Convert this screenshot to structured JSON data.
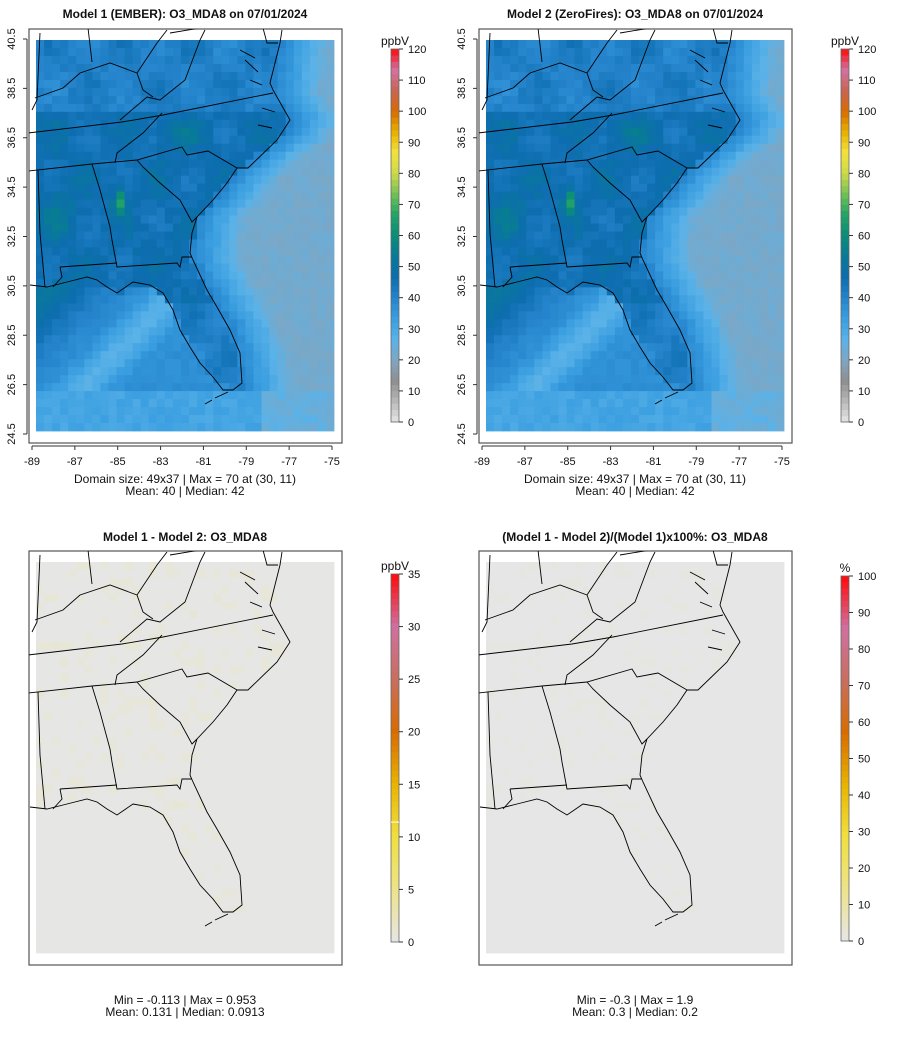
{
  "panels": [
    {
      "title": "Model 1 (EMBER): O3_MDA8 on 07/01/2024",
      "unit": "ppbV",
      "colorbar_ticks": [
        "0",
        "10",
        "20",
        "30",
        "40",
        "50",
        "60",
        "70",
        "80",
        "90",
        "100",
        "110",
        "120"
      ],
      "stats_line1": "Domain size: 49x37 | Max = 70 at (30, 11)",
      "stats_line2": "Mean: 40 |  Median: 42"
    },
    {
      "title": "Model 2 (ZeroFires): O3_MDA8 on 07/01/2024",
      "unit": "ppbV",
      "colorbar_ticks": [
        "0",
        "10",
        "20",
        "30",
        "40",
        "50",
        "60",
        "70",
        "80",
        "90",
        "100",
        "110",
        "120"
      ],
      "stats_line1": "Domain size: 49x37 | Max = 70 at (30, 11)",
      "stats_line2": "Mean: 40 |  Median: 42"
    },
    {
      "title": "Model 1 - Model 2: O3_MDA8",
      "unit": "ppbV",
      "colorbar_ticks": [
        "0",
        "5",
        "10",
        "15",
        "20",
        "25",
        "30",
        "35"
      ],
      "stats_line1": "Min = -0.113 | Max = 0.953",
      "stats_line2": "Mean: 0.131 |  Median: 0.0913"
    },
    {
      "title": "(Model 1 - Model 2)/(Model 1)x100%: O3_MDA8",
      "unit": "%",
      "colorbar_ticks": [
        "0",
        "10",
        "20",
        "30",
        "40",
        "50",
        "60",
        "70",
        "80",
        "90",
        "100"
      ],
      "stats_line1": "Min = -0.3 | Max = 1.9",
      "stats_line2": "Mean: 0.3 |  Median: 0.2"
    }
  ],
  "axes": {
    "lat_ticks": [
      "40.5",
      "38.5",
      "36.5",
      "34.5",
      "32.5",
      "30.5",
      "28.5",
      "26.5",
      "24.5"
    ],
    "lon_ticks": [
      "-89",
      "-87",
      "-85",
      "-83",
      "-81",
      "-79",
      "-77",
      "-75"
    ]
  },
  "colors": {
    "o3_scale": [
      "#e6e6e6",
      "#b8b8b8",
      "#8e8e8e",
      "#7fa6c2",
      "#5ab2e8",
      "#3a9ee0",
      "#2584cc",
      "#0d6daf",
      "#087a98",
      "#0a8c78",
      "#22a266",
      "#72c055",
      "#cdd94a",
      "#f1e23c",
      "#e8b000",
      "#d86c00",
      "#c86452",
      "#d072a2",
      "#ff0a0a"
    ],
    "diff_scale": [
      "#e6e6e6",
      "#ede38a",
      "#f0e040",
      "#e9b400",
      "#d86c00",
      "#c86e5e",
      "#d070a0",
      "#ff0a0a"
    ],
    "box": "#555555"
  },
  "chart_data": {
    "type": "heatmap",
    "grid": "49x37",
    "variable": "O3_MDA8",
    "date": "07/01/2024",
    "lat_range": [
      24.5,
      40.5
    ],
    "lon_range": [
      -89,
      -75
    ],
    "model1": {
      "max": 70,
      "max_at": [
        30,
        11
      ],
      "mean": 40,
      "median": 42,
      "clim": [
        0,
        120
      ]
    },
    "model2": {
      "max": 70,
      "max_at": [
        30,
        11
      ],
      "mean": 40,
      "median": 42,
      "clim": [
        0,
        120
      ]
    },
    "difference": {
      "min": -0.113,
      "max": 0.953,
      "mean": 0.131,
      "median": 0.0913,
      "clim": [
        0,
        35
      ]
    },
    "percent_difference": {
      "min": -0.3,
      "max": 1.9,
      "mean": 0.3,
      "median": 0.2,
      "clim": [
        0,
        100
      ]
    }
  }
}
